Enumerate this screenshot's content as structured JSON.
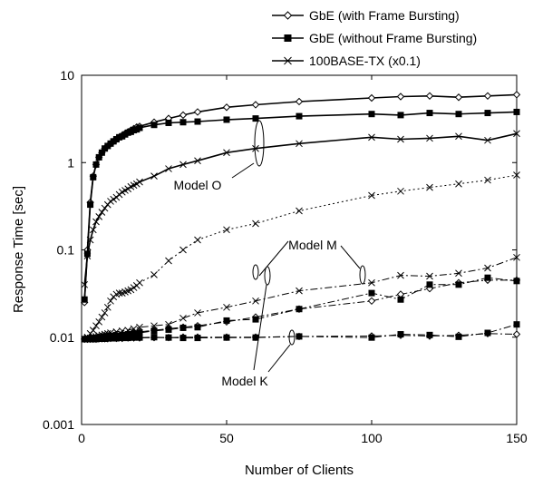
{
  "chart_data": {
    "type": "line",
    "title": "",
    "xlabel": "Number of Clients",
    "ylabel": "Response Time [sec]",
    "xlim": [
      0,
      150
    ],
    "ylim": [
      0.001,
      10
    ],
    "yscale": "log",
    "x_ticks": [
      "0",
      "50",
      "100",
      "150"
    ],
    "y_ticks": [
      "0.001",
      "0.01",
      "0.1",
      "1",
      "10"
    ],
    "grid": false,
    "legend_placement": "top-right",
    "legend": [
      {
        "label": "GbE (with Frame Bursting)",
        "marker": "diamond-open",
        "dash": "solid"
      },
      {
        "label": "GbE (without Frame Bursting)",
        "marker": "square-filled",
        "dash": "solid"
      },
      {
        "label": "100BASE-TX (x0.1)",
        "marker": "x",
        "dash": "solid"
      }
    ],
    "annotations": [
      "Model O",
      "Model M",
      "Model K"
    ],
    "series": [
      {
        "model": "Model O",
        "legend_index": 0,
        "marker": "diamond-open",
        "dash": "solid",
        "x": [
          1,
          2,
          3,
          4,
          5,
          6,
          7,
          8,
          9,
          10,
          11,
          12,
          13,
          14,
          15,
          16,
          17,
          18,
          19,
          20,
          25,
          30,
          35,
          40,
          50,
          60,
          75,
          100,
          110,
          120,
          130,
          140,
          150
        ],
        "y": [
          0.025,
          0.1,
          0.35,
          0.7,
          0.95,
          1.15,
          1.3,
          1.45,
          1.55,
          1.65,
          1.75,
          1.85,
          1.95,
          2.05,
          2.15,
          2.25,
          2.35,
          2.45,
          2.55,
          2.6,
          2.9,
          3.2,
          3.5,
          3.8,
          4.3,
          4.6,
          5.0,
          5.5,
          5.7,
          5.8,
          5.6,
          5.8,
          6.0
        ]
      },
      {
        "model": "Model O",
        "legend_index": 1,
        "marker": "square-filled",
        "dash": "solid",
        "x": [
          1,
          2,
          3,
          4,
          5,
          6,
          7,
          8,
          9,
          10,
          11,
          12,
          13,
          14,
          15,
          16,
          17,
          18,
          19,
          20,
          25,
          30,
          35,
          40,
          50,
          60,
          75,
          100,
          110,
          120,
          130,
          140,
          150
        ],
        "y": [
          0.027,
          0.09,
          0.33,
          0.68,
          0.95,
          1.15,
          1.3,
          1.45,
          1.55,
          1.65,
          1.75,
          1.85,
          1.95,
          2.0,
          2.1,
          2.2,
          2.25,
          2.35,
          2.4,
          2.5,
          2.7,
          2.85,
          2.9,
          2.95,
          3.1,
          3.2,
          3.4,
          3.6,
          3.5,
          3.7,
          3.6,
          3.7,
          3.8
        ]
      },
      {
        "model": "Model O",
        "legend_index": 2,
        "marker": "x",
        "dash": "solid",
        "x": [
          1,
          2,
          3,
          4,
          5,
          6,
          7,
          8,
          9,
          10,
          11,
          12,
          13,
          14,
          15,
          16,
          17,
          18,
          19,
          20,
          25,
          30,
          35,
          40,
          50,
          60,
          75,
          100,
          110,
          120,
          130,
          140,
          150
        ],
        "y": [
          0.04,
          0.085,
          0.13,
          0.17,
          0.21,
          0.24,
          0.27,
          0.3,
          0.33,
          0.36,
          0.38,
          0.4,
          0.43,
          0.46,
          0.48,
          0.5,
          0.53,
          0.55,
          0.57,
          0.6,
          0.7,
          0.85,
          0.95,
          1.05,
          1.3,
          1.45,
          1.65,
          1.95,
          1.85,
          1.9,
          2.0,
          1.8,
          2.15
        ]
      },
      {
        "model": "Model M",
        "legend_index": 0,
        "marker": "diamond-open",
        "dash": "dashdot",
        "x": [
          1,
          2,
          3,
          4,
          5,
          6,
          7,
          8,
          9,
          10,
          12,
          14,
          16,
          18,
          20,
          25,
          30,
          35,
          40,
          50,
          60,
          75,
          100,
          110,
          120,
          130,
          140,
          150
        ],
        "y": [
          0.0095,
          0.0095,
          0.0097,
          0.0098,
          0.0099,
          0.01,
          0.0101,
          0.0102,
          0.0103,
          0.0104,
          0.0106,
          0.0108,
          0.011,
          0.0112,
          0.0115,
          0.012,
          0.0125,
          0.013,
          0.0135,
          0.015,
          0.017,
          0.021,
          0.026,
          0.031,
          0.036,
          0.042,
          0.045,
          0.045
        ]
      },
      {
        "model": "Model M",
        "legend_index": 1,
        "marker": "square-filled",
        "dash": "dashdot",
        "x": [
          1,
          2,
          3,
          4,
          5,
          6,
          7,
          8,
          9,
          10,
          12,
          14,
          16,
          18,
          20,
          25,
          30,
          35,
          40,
          50,
          60,
          75,
          100,
          110,
          120,
          130,
          140,
          150
        ],
        "y": [
          0.0095,
          0.0095,
          0.0096,
          0.0097,
          0.0098,
          0.0099,
          0.01,
          0.0101,
          0.0102,
          0.0103,
          0.0104,
          0.0106,
          0.0108,
          0.011,
          0.0112,
          0.0118,
          0.0122,
          0.0128,
          0.013,
          0.0155,
          0.016,
          0.021,
          0.032,
          0.027,
          0.04,
          0.04,
          0.048,
          0.044
        ]
      },
      {
        "model": "Model M",
        "legend_index": 2,
        "marker": "x",
        "dash": "dotted",
        "x": [
          1,
          2,
          3,
          4,
          5,
          6,
          7,
          8,
          9,
          10,
          11,
          12,
          13,
          14,
          15,
          16,
          17,
          18,
          19,
          20,
          25,
          30,
          35,
          40,
          50,
          60,
          75,
          100,
          110,
          120,
          130,
          140,
          150
        ],
        "y": [
          0.0095,
          0.01,
          0.011,
          0.012,
          0.0135,
          0.015,
          0.017,
          0.019,
          0.022,
          0.026,
          0.029,
          0.031,
          0.032,
          0.032,
          0.033,
          0.034,
          0.035,
          0.037,
          0.039,
          0.042,
          0.052,
          0.075,
          0.1,
          0.13,
          0.17,
          0.2,
          0.28,
          0.42,
          0.47,
          0.52,
          0.57,
          0.63,
          0.72
        ]
      },
      {
        "model": "Model K",
        "legend_index": 0,
        "marker": "diamond-open",
        "dash": "dashdot",
        "x": [
          1,
          2,
          3,
          4,
          5,
          6,
          7,
          8,
          9,
          10,
          12,
          14,
          16,
          18,
          20,
          25,
          30,
          35,
          40,
          50,
          60,
          75,
          100,
          110,
          120,
          130,
          140,
          150
        ],
        "y": [
          0.0095,
          0.0095,
          0.0095,
          0.0095,
          0.0095,
          0.0096,
          0.0096,
          0.0096,
          0.0096,
          0.0097,
          0.0097,
          0.0097,
          0.0098,
          0.0098,
          0.0098,
          0.0099,
          0.0099,
          0.01,
          0.01,
          0.01,
          0.01,
          0.0102,
          0.0103,
          0.0105,
          0.0103,
          0.0105,
          0.011,
          0.0108
        ]
      },
      {
        "model": "Model K",
        "legend_index": 1,
        "marker": "square-filled",
        "dash": "dashdot",
        "x": [
          1,
          2,
          3,
          4,
          5,
          6,
          7,
          8,
          9,
          10,
          12,
          14,
          16,
          18,
          20,
          25,
          30,
          35,
          40,
          50,
          60,
          75,
          100,
          110,
          120,
          130,
          140,
          150
        ],
        "y": [
          0.0095,
          0.0095,
          0.0095,
          0.0095,
          0.0095,
          0.0096,
          0.0096,
          0.0096,
          0.0097,
          0.0097,
          0.0097,
          0.0098,
          0.0098,
          0.0099,
          0.0099,
          0.01,
          0.0099,
          0.0098,
          0.0098,
          0.0099,
          0.0099,
          0.0102,
          0.0099,
          0.0108,
          0.0106,
          0.0101,
          0.0112,
          0.014
        ]
      },
      {
        "model": "Model K",
        "legend_index": 2,
        "marker": "x",
        "dash": "dashdot",
        "x": [
          1,
          2,
          3,
          4,
          5,
          6,
          7,
          8,
          9,
          10,
          12,
          14,
          16,
          18,
          20,
          25,
          30,
          35,
          40,
          50,
          60,
          75,
          100,
          110,
          120,
          130,
          140,
          150
        ],
        "y": [
          0.0095,
          0.0097,
          0.0098,
          0.01,
          0.0102,
          0.0104,
          0.0106,
          0.0108,
          0.011,
          0.0112,
          0.0115,
          0.0118,
          0.012,
          0.0125,
          0.013,
          0.0135,
          0.014,
          0.0165,
          0.019,
          0.022,
          0.026,
          0.034,
          0.042,
          0.051,
          0.05,
          0.054,
          0.062,
          0.082
        ]
      }
    ]
  }
}
